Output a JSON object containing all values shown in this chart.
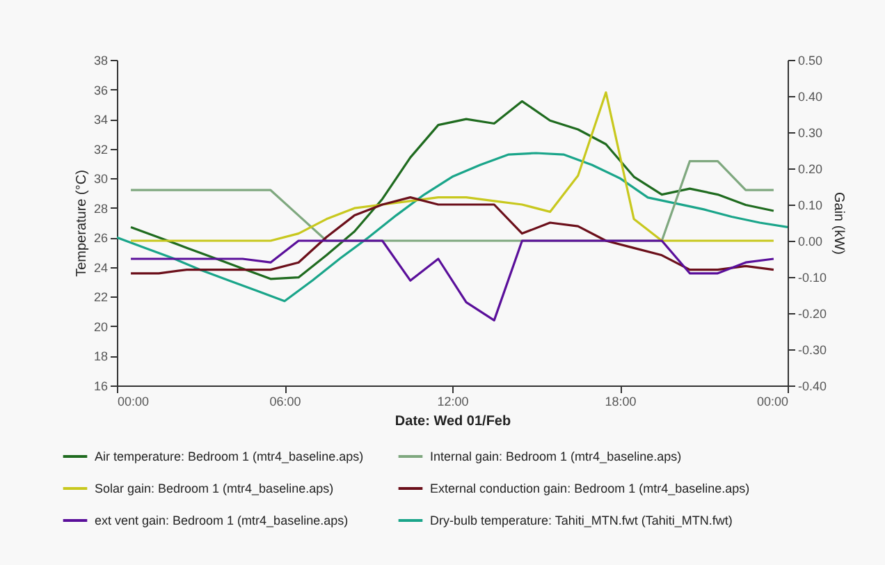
{
  "chart_data": {
    "type": "line",
    "xlabel": "Date: Wed 01/Feb",
    "ylabel": "Temperature (°C)",
    "y2label": "Gain (kW)",
    "x": [
      0.5,
      1.5,
      2.5,
      3.5,
      4.5,
      5.5,
      6.5,
      7.5,
      8.5,
      9.5,
      10.5,
      11.5,
      12.5,
      13.5,
      14.5,
      15.5,
      16.5,
      17.5,
      18.5,
      19.5,
      20.5,
      21.5,
      22.5,
      23.5
    ],
    "xlim": [
      0,
      24
    ],
    "xticks": [
      {
        "value": 0,
        "label": "00:00"
      },
      {
        "value": 6,
        "label": "06:00"
      },
      {
        "value": 12,
        "label": "12:00"
      },
      {
        "value": 18,
        "label": "18:00"
      },
      {
        "value": 24,
        "label": "00:00"
      }
    ],
    "ylim": [
      16,
      38
    ],
    "yticks": [
      16,
      18,
      20,
      22,
      24,
      26,
      28,
      30,
      32,
      34,
      36,
      38
    ],
    "y2lim": [
      -0.4,
      0.5
    ],
    "y2ticks": [
      {
        "value": -0.4,
        "label": "-0.40"
      },
      {
        "value": -0.3,
        "label": "-0.30"
      },
      {
        "value": -0.2,
        "label": "-0.20"
      },
      {
        "value": -0.1,
        "label": "-0.10"
      },
      {
        "value": 0,
        "label": "0.00"
      },
      {
        "value": 0.1,
        "label": "0.10"
      },
      {
        "value": 0.2,
        "label": "0.20"
      },
      {
        "value": 0.3,
        "label": "0.30"
      },
      {
        "value": 0.4,
        "label": "0.40"
      },
      {
        "value": 0.5,
        "label": "0.50"
      }
    ],
    "grid": false,
    "legend": "bottom",
    "line_style": "solid",
    "series": [
      {
        "name": "Air temperature: Bedroom 1 (mtr4_baseline.aps)",
        "color": "#1f6b1f",
        "values": [
          26.7,
          26.0,
          25.3,
          24.6,
          23.9,
          23.2,
          23.3,
          24.8,
          26.4,
          28.6,
          31.4,
          33.6,
          34.0,
          33.7,
          35.2,
          33.9,
          33.3,
          32.3,
          30.1,
          28.9,
          29.3,
          28.9,
          28.2,
          27.8
        ]
      },
      {
        "name": "Internal gain: Bedroom 1 (mtr4_baseline.aps)",
        "color": "#7fa87f",
        "axis": "y2",
        "values": [
          0.14,
          0.14,
          0.14,
          0.14,
          0.14,
          0.14,
          0.07,
          0,
          0,
          0,
          0,
          0,
          0,
          0,
          0,
          0,
          0,
          0,
          0,
          0,
          0.22,
          0.22,
          0.14,
          0.14
        ]
      },
      {
        "name": "Solar gain: Bedroom 1 (mtr4_baseline.aps)",
        "color": "#c8c81e",
        "axis": "y2",
        "values": [
          0,
          0,
          0,
          0,
          0,
          0,
          0.02,
          0.06,
          0.09,
          0.1,
          0.11,
          0.12,
          0.12,
          0.11,
          0.1,
          0.08,
          0.18,
          0.41,
          0.06,
          0,
          0,
          0,
          0,
          0
        ]
      },
      {
        "name": "External conduction gain: Bedroom 1 (mtr4_baseline.aps)",
        "color": "#6b0f1a",
        "axis": "y2",
        "values": [
          -0.09,
          -0.09,
          -0.08,
          -0.08,
          -0.08,
          -0.08,
          -0.06,
          0.01,
          0.07,
          0.1,
          0.12,
          0.1,
          0.1,
          0.1,
          0.02,
          0.05,
          0.04,
          0.0,
          -0.02,
          -0.04,
          -0.08,
          -0.08,
          -0.07,
          -0.08
        ]
      },
      {
        "name": "ext vent gain: Bedroom 1 (mtr4_baseline.aps)",
        "color": "#5a0f9a",
        "axis": "y2",
        "values": [
          -0.05,
          -0.05,
          -0.05,
          -0.05,
          -0.05,
          -0.06,
          0,
          0,
          0,
          0,
          -0.11,
          -0.05,
          -0.17,
          -0.22,
          0,
          0,
          0,
          0,
          0,
          0,
          -0.09,
          -0.09,
          -0.06,
          -0.05
        ]
      },
      {
        "name": "Dry-bulb temperature: Tahiti_MTN.fwt (Tahiti_MTN.fwt)",
        "color": "#1aa58a",
        "x": [
          0,
          1,
          2,
          3,
          4,
          5,
          6,
          7,
          8,
          9,
          10,
          11,
          12,
          13,
          14,
          15,
          16,
          17,
          18,
          19,
          20,
          21,
          22,
          23,
          24
        ],
        "values": [
          26.0,
          25.3,
          24.6,
          23.8,
          23.1,
          22.4,
          21.7,
          23.1,
          24.6,
          26.0,
          27.5,
          28.9,
          30.1,
          30.9,
          31.6,
          31.7,
          31.6,
          30.9,
          30.0,
          28.7,
          28.3,
          27.9,
          27.4,
          27.0,
          26.7
        ]
      }
    ]
  }
}
